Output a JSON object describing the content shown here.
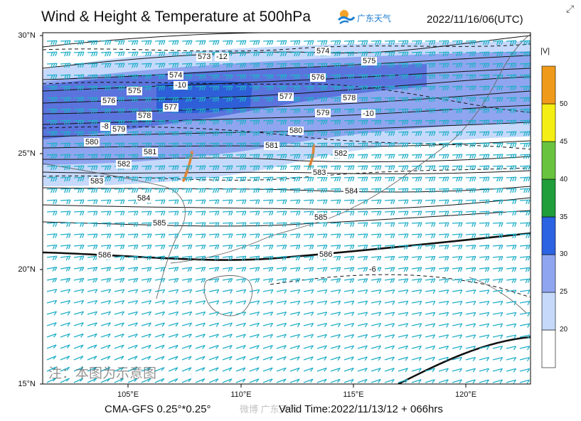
{
  "header": {
    "title": "Wind & Height & Temperature at 500hPa",
    "logo_text": "广东天气",
    "datetime": "2022/11/16/06(UTC)",
    "expand_icon": "expand-icon"
  },
  "map": {
    "lat_labels": [
      "30°N",
      "25°N",
      "20°N",
      "15°N"
    ],
    "lon_labels": [
      "105°E",
      "110°E",
      "115°E",
      "120°E"
    ],
    "height_contour_labels": [
      "573",
      "574",
      "574",
      "575",
      "575",
      "576",
      "576",
      "577",
      "577",
      "578",
      "578",
      "579",
      "579",
      "580",
      "580",
      "581",
      "581",
      "582",
      "582",
      "583",
      "583",
      "584",
      "584",
      "585",
      "585",
      "586",
      "586"
    ],
    "temperature_labels": [
      "-12",
      "-10",
      "-10",
      "-8",
      "-6"
    ],
    "thick_contour": "586",
    "colors": {
      "band_20_25": "#c6d9fb",
      "band_25_30": "#8fa5ef",
      "band_30_35": "#5b74dd",
      "band_35_40": "#2f5fd8",
      "barb": "#21b0c8",
      "trough": "#e08536"
    }
  },
  "colorbar": {
    "title": "|V|",
    "ticks": [
      "20",
      "25",
      "30",
      "35",
      "40",
      "45",
      "50"
    ],
    "colors": [
      "#ffffff",
      "#c6d9fb",
      "#8fa5ef",
      "#2c63e3",
      "#1f9e3a",
      "#69c33f",
      "#f5ee14",
      "#f09a1b"
    ]
  },
  "footer": {
    "model": "CMA-GFS  0.25°*0.25°",
    "valid": "Valid Time:2022/11/13/12 + 066hrs",
    "watermark": "注：本图为示意图",
    "source": "微博 广东天气"
  }
}
